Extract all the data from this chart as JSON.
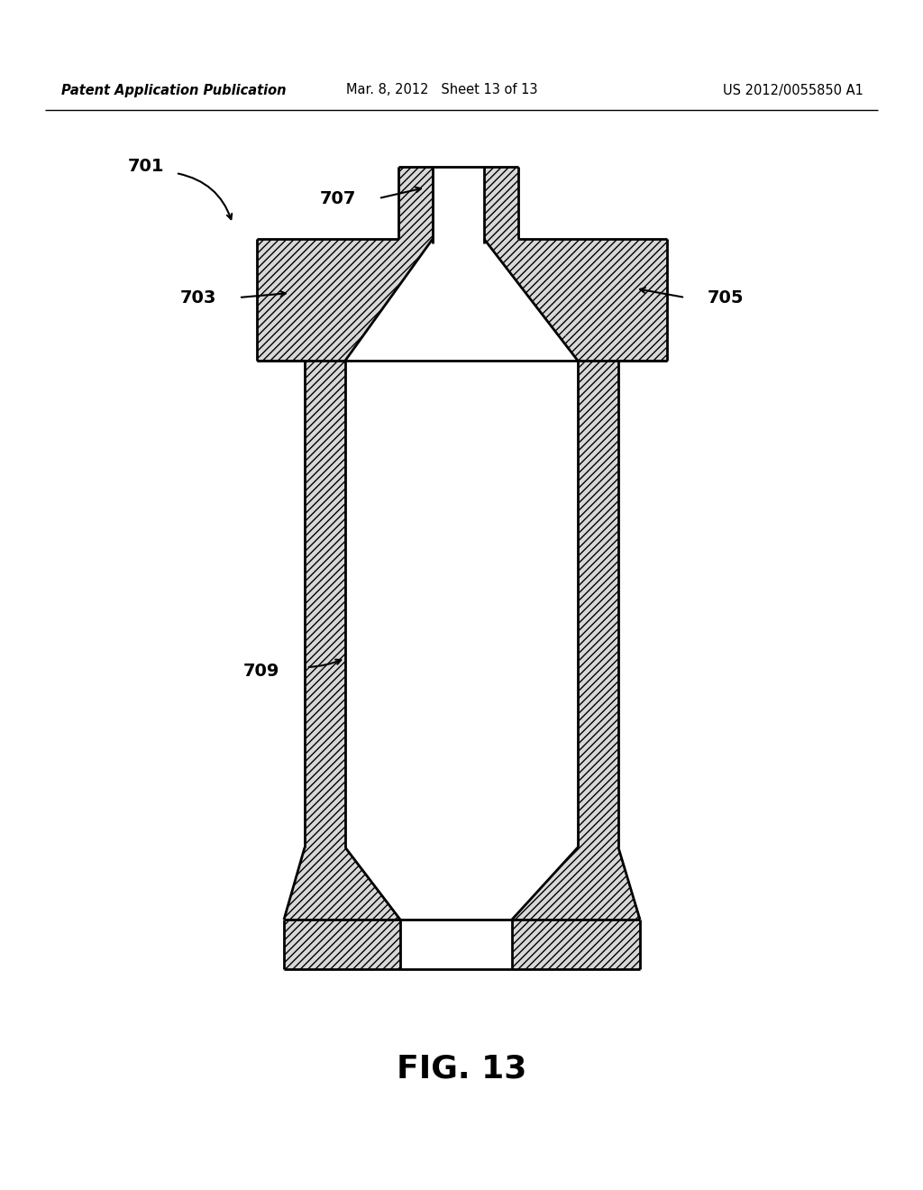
{
  "header_left": "Patent Application Publication",
  "header_center": "Mar. 8, 2012   Sheet 13 of 13",
  "header_right": "US 2012/0055850 A1",
  "fig_title": "FIG. 13",
  "label_701": "701",
  "label_703": "703",
  "label_705": "705",
  "label_707": "707",
  "label_709": "709",
  "bg_color": "#ffffff"
}
